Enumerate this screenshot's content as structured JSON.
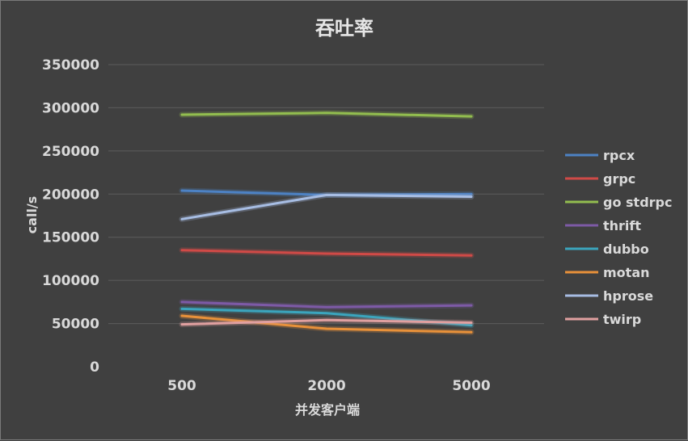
{
  "chart_data": {
    "type": "line",
    "title": "吞吐率",
    "xlabel": "并发客户端",
    "ylabel": "call/s",
    "categories": [
      "500",
      "2000",
      "5000"
    ],
    "ylim": [
      0,
      350000
    ],
    "yticks": [
      0,
      50000,
      100000,
      150000,
      200000,
      250000,
      300000,
      350000
    ],
    "grid": true,
    "legend_position": "right",
    "series": [
      {
        "name": "rpcx",
        "color": "#4d82c4",
        "values": [
          204000,
          199000,
          200000
        ]
      },
      {
        "name": "grpc",
        "color": "#d04a47",
        "values": [
          135000,
          131000,
          129000
        ]
      },
      {
        "name": "go stdrpc",
        "color": "#92bd4f",
        "values": [
          292000,
          294000,
          290000
        ]
      },
      {
        "name": "thrift",
        "color": "#7d5aa6",
        "values": [
          75000,
          69000,
          71000
        ]
      },
      {
        "name": "dubbo",
        "color": "#3ba5bd",
        "values": [
          67000,
          62000,
          48000
        ]
      },
      {
        "name": "motan",
        "color": "#e8913a",
        "values": [
          59000,
          44000,
          40000
        ]
      },
      {
        "name": "hprose",
        "color": "#a7bde3",
        "values": [
          171000,
          199000,
          197000
        ]
      },
      {
        "name": "twirp",
        "color": "#e0a0a0",
        "values": [
          49000,
          54000,
          51000
        ]
      }
    ]
  }
}
